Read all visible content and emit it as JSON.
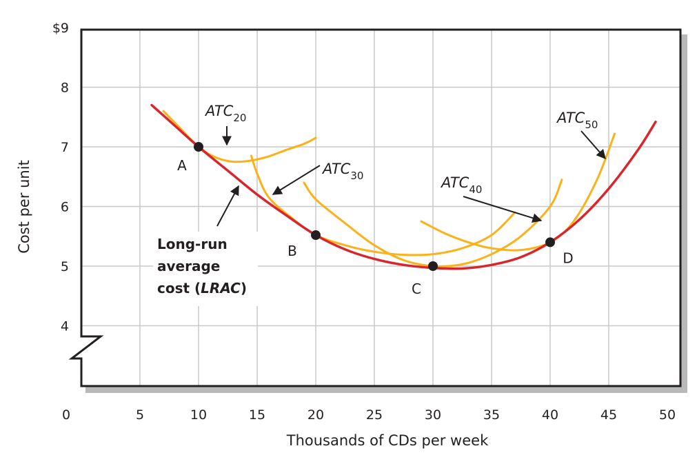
{
  "chart_data": {
    "type": "line",
    "xlabel": "Thousands of CDs per week",
    "ylabel": "Cost per unit",
    "xlim": [
      0,
      50
    ],
    "ylim": [
      3,
      9
    ],
    "x_ticks": [
      0,
      5,
      10,
      15,
      20,
      25,
      30,
      35,
      40,
      45,
      50
    ],
    "x_tick_labels": [
      "0",
      "5",
      "10",
      "15",
      "20",
      "25",
      "30",
      "35",
      "40",
      "45",
      "50"
    ],
    "y_ticks": [
      4,
      5,
      6,
      7,
      8,
      9
    ],
    "y_tick_labels": [
      "4",
      "5",
      "6",
      "7",
      "8",
      "$9"
    ],
    "y_axis_break": true,
    "grid": true,
    "colors": {
      "lrac": "#d7262c",
      "atc": "#fbb117",
      "point": "#231f20",
      "grid": "#c8c8c8",
      "frame": "#231f20"
    },
    "series": [
      {
        "name": "Long-run average cost (LRAC)",
        "role": "lrac",
        "x": [
          6,
          8,
          10,
          12.5,
          15,
          17.5,
          20,
          22.5,
          25,
          27.5,
          30,
          32.5,
          35,
          37.5,
          40,
          42.5,
          45,
          47.5,
          49
        ],
        "y": [
          7.7,
          7.35,
          7.0,
          6.6,
          6.2,
          5.85,
          5.52,
          5.28,
          5.12,
          5.02,
          4.97,
          4.96,
          5.02,
          5.15,
          5.4,
          5.78,
          6.3,
          6.95,
          7.42
        ]
      },
      {
        "name": "ATC20",
        "role": "atc",
        "x": [
          7,
          8.5,
          10,
          11.5,
          13,
          14.5,
          16,
          17.5,
          19,
          20
        ],
        "y": [
          7.6,
          7.3,
          7.0,
          6.82,
          6.75,
          6.77,
          6.84,
          6.95,
          7.05,
          7.15
        ]
      },
      {
        "name": "ATC30",
        "role": "atc",
        "x": [
          14.5,
          15,
          16,
          18,
          20,
          22.5,
          25,
          27.5,
          30,
          32.5,
          35,
          37
        ],
        "y": [
          6.85,
          6.55,
          6.15,
          5.8,
          5.52,
          5.35,
          5.24,
          5.19,
          5.2,
          5.3,
          5.52,
          5.9
        ]
      },
      {
        "name": "ATC40",
        "role": "atc",
        "x": [
          19,
          20,
          22.5,
          25,
          27.5,
          30,
          32.5,
          35,
          37.5,
          40,
          41
        ],
        "y": [
          6.4,
          6.12,
          5.72,
          5.35,
          5.1,
          5.0,
          5.03,
          5.2,
          5.5,
          6.0,
          6.45
        ]
      },
      {
        "name": "ATC50",
        "role": "atc",
        "x": [
          29,
          31,
          33,
          35,
          37.5,
          40,
          42,
          44,
          45.5
        ],
        "y": [
          5.75,
          5.55,
          5.4,
          5.3,
          5.27,
          5.4,
          5.75,
          6.45,
          7.22
        ]
      }
    ],
    "points": [
      {
        "label": "A",
        "x": 10,
        "y": 7.0
      },
      {
        "label": "B",
        "x": 20,
        "y": 5.52
      },
      {
        "label": "C",
        "x": 30,
        "y": 5.0
      },
      {
        "label": "D",
        "x": 40,
        "y": 5.4
      }
    ],
    "curve_labels": [
      {
        "main": "ATC",
        "sub": "20"
      },
      {
        "main": "ATC",
        "sub": "30"
      },
      {
        "main": "ATC",
        "sub": "40"
      },
      {
        "main": "ATC",
        "sub": "50"
      }
    ],
    "annotations": [
      "Long-run",
      "average",
      "cost (",
      "LRAC",
      ")"
    ]
  }
}
